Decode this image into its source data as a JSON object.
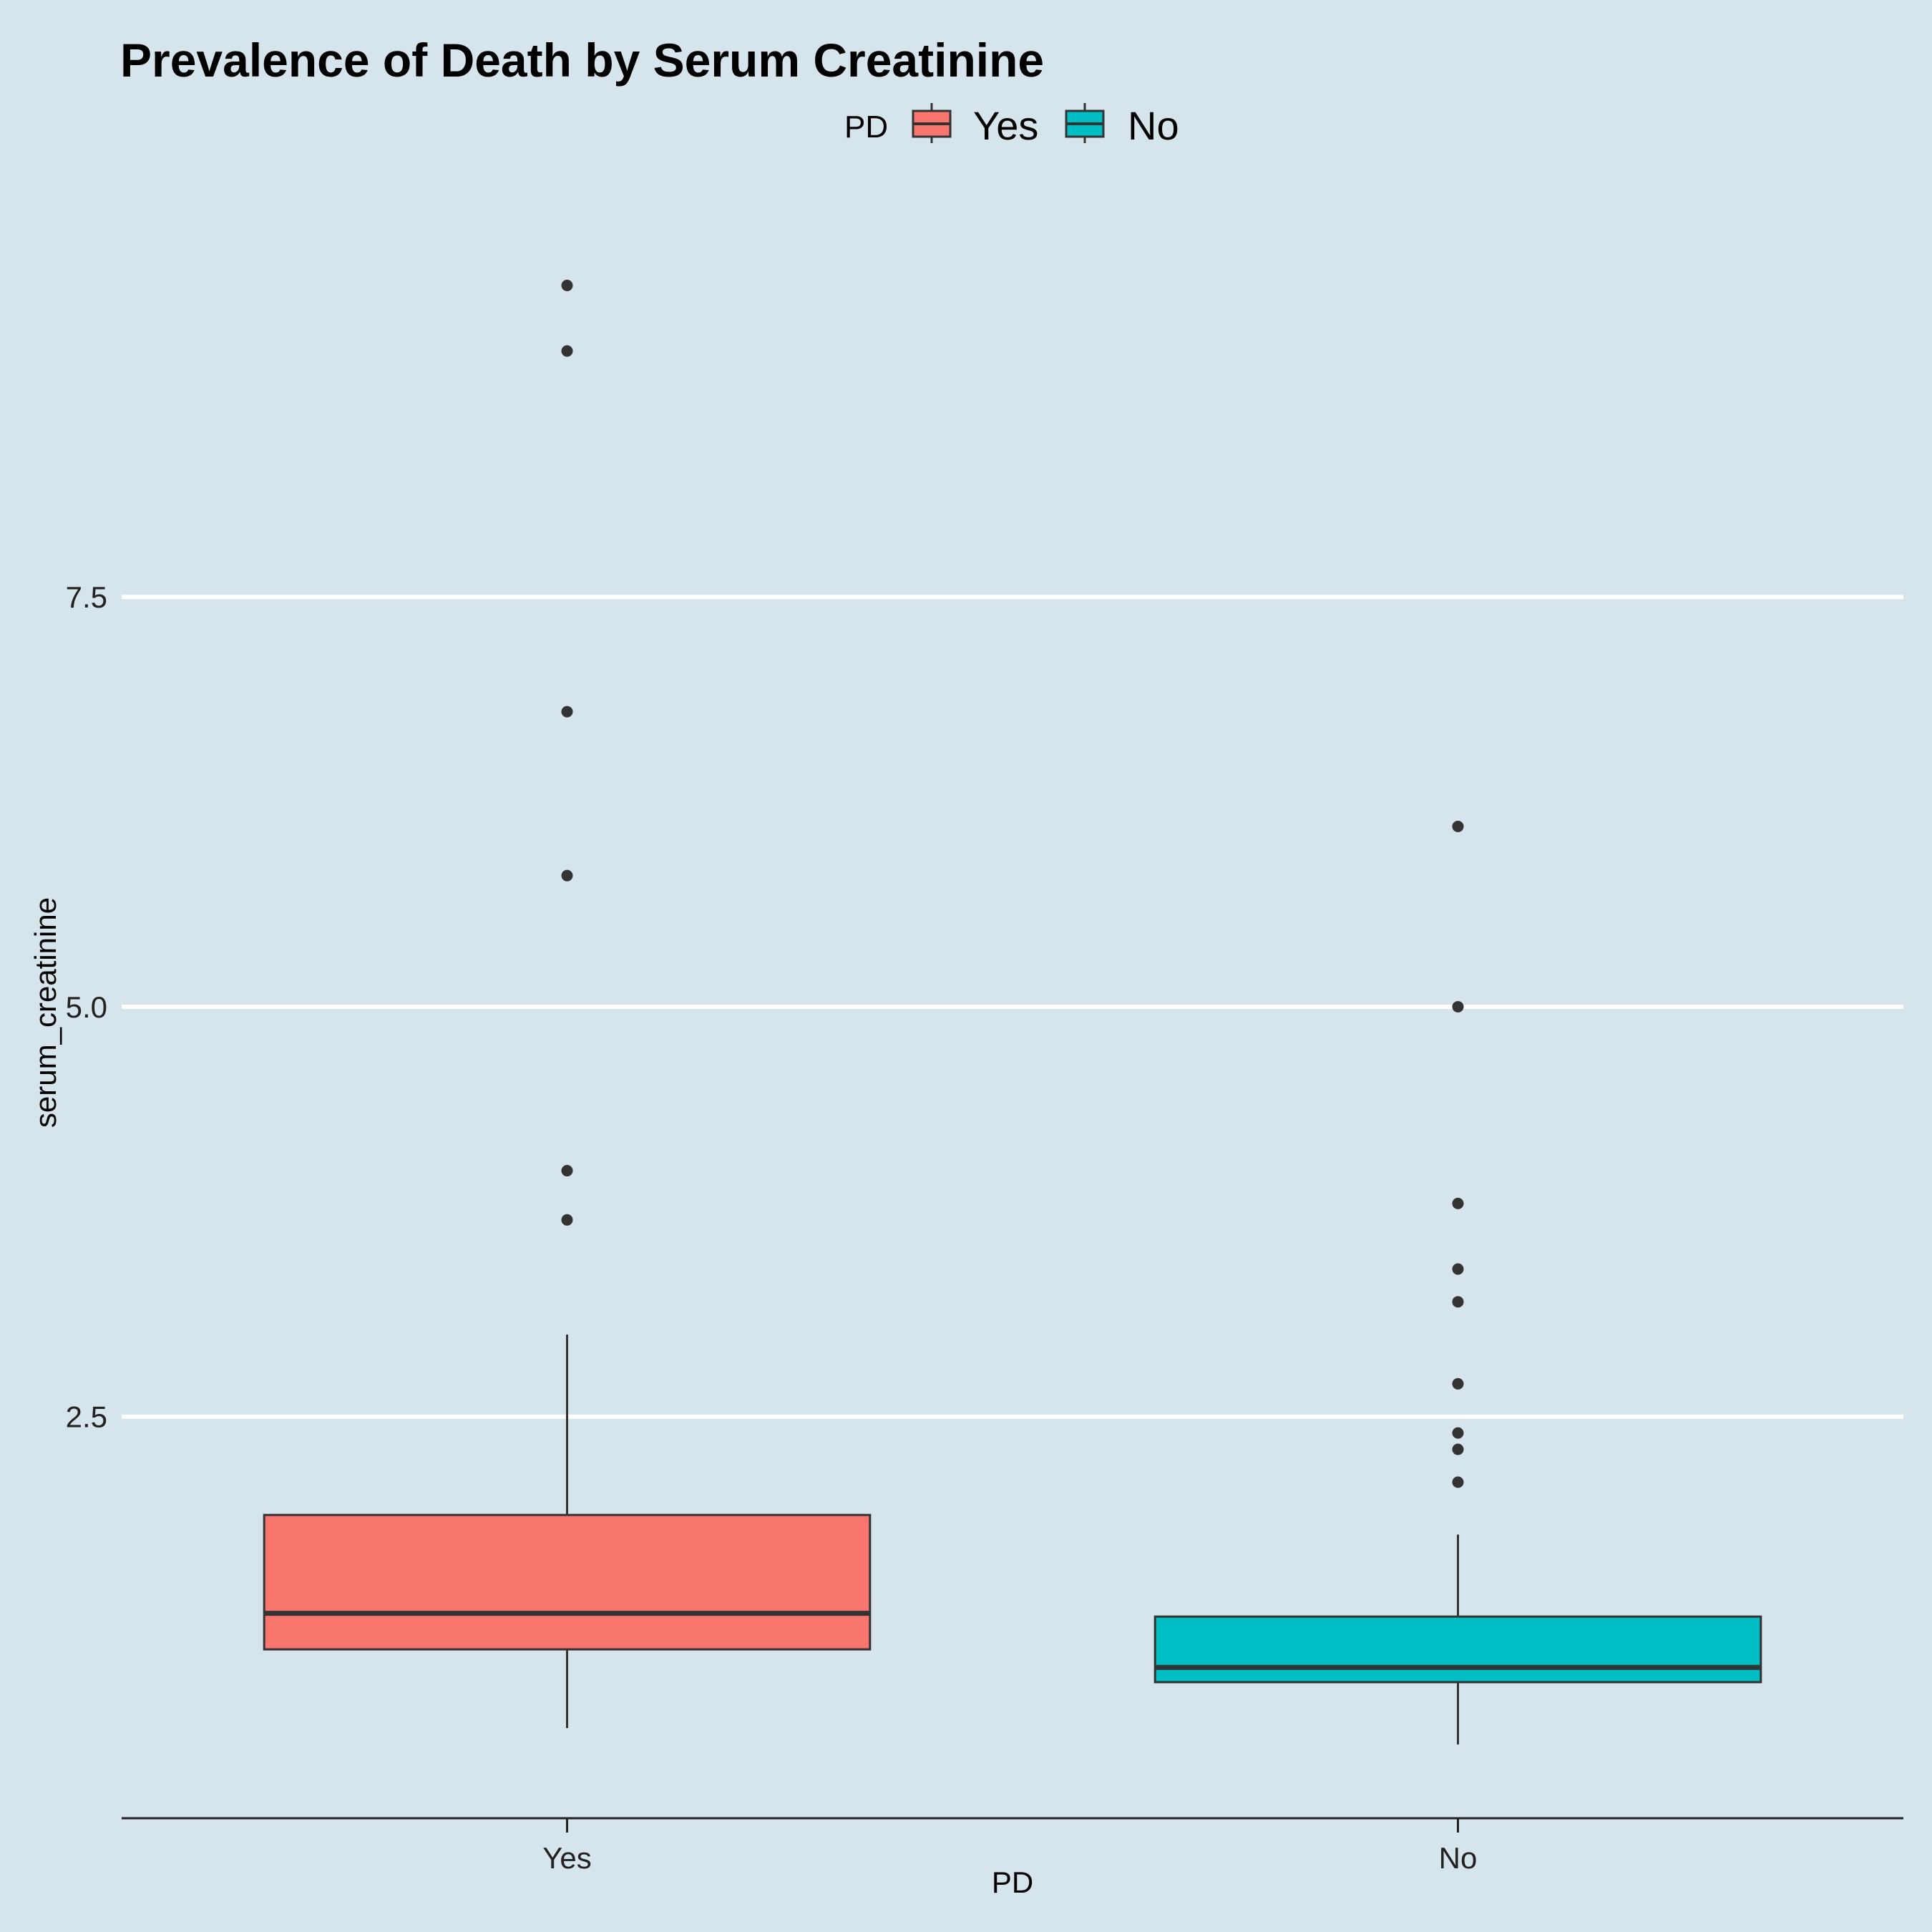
{
  "chart_data": {
    "type": "boxplot",
    "title": "Prevalence of Death by Serum Creatinine",
    "xlabel": "PD",
    "ylabel": "serum_creatinine",
    "legend": {
      "title": "PD",
      "placement": "top",
      "entries": [
        "Yes",
        "No"
      ]
    },
    "y_ticks": [
      "2.5",
      "5.0",
      "7.5"
    ],
    "y_tick_values": [
      2.5,
      5.0,
      7.5
    ],
    "ylim": [
      0.05,
      10.05
    ],
    "grid": "horizontal major only",
    "categories": [
      "Yes",
      "No"
    ],
    "series": [
      {
        "name": "Yes",
        "color": "#F8766D",
        "min": 0.6,
        "q1": 1.08,
        "median": 1.3,
        "q3": 1.9,
        "max": 3.0,
        "outliers": [
          9.4,
          9.0,
          6.8,
          5.8,
          4.0,
          3.7
        ]
      },
      {
        "name": "No",
        "color": "#00BFC4",
        "min": 0.5,
        "q1": 0.88,
        "median": 0.97,
        "q3": 1.28,
        "max": 1.78,
        "outliers": [
          6.1,
          5.0,
          3.8,
          3.4,
          3.2,
          2.7,
          2.4,
          2.3,
          2.1
        ]
      }
    ]
  }
}
